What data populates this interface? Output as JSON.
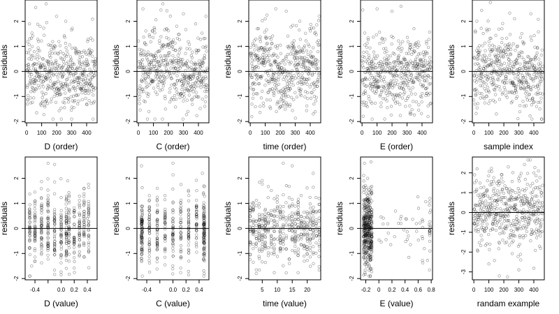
{
  "chart_data": [
    {
      "type": "scatter",
      "xlabel": "D (order)",
      "ylabel": "residuals",
      "xlim": [
        -10,
        470
      ],
      "ylim": [
        -2.05,
        2.85
      ],
      "xticks": [
        0,
        100,
        200,
        300,
        400
      ],
      "yticks": [
        -2,
        -1,
        0,
        1,
        2
      ],
      "hline": 0,
      "n_points": 470,
      "pattern": "index_mild",
      "points": [
        [
          5,
          -1.3
        ],
        [
          20,
          1.3
        ],
        [
          60,
          2.55
        ],
        [
          90,
          1.8
        ],
        [
          130,
          2.7
        ],
        [
          200,
          2.2
        ],
        [
          300,
          -1.9
        ],
        [
          400,
          -1.3
        ],
        [
          440,
          1.25
        ]
      ]
    },
    {
      "type": "scatter",
      "xlabel": "C (order)",
      "ylabel": "residuals",
      "xlim": [
        -10,
        470
      ],
      "ylim": [
        -2.05,
        2.85
      ],
      "xticks": [
        0,
        100,
        200,
        300,
        400
      ],
      "yticks": [
        -2,
        -1,
        0,
        1,
        2
      ],
      "hline": 0,
      "n_points": 470,
      "pattern": "index_trend",
      "points": [
        [
          30,
          2.5
        ],
        [
          70,
          -1.6
        ],
        [
          150,
          2.45
        ],
        [
          180,
          -1.5
        ],
        [
          300,
          2.3
        ],
        [
          330,
          -1.6
        ],
        [
          450,
          2.2
        ]
      ]
    },
    {
      "type": "scatter",
      "xlabel": "time (order)",
      "ylabel": "residuals",
      "xlim": [
        -10,
        470
      ],
      "ylim": [
        -2.05,
        2.85
      ],
      "xticks": [
        0,
        100,
        200,
        300,
        400
      ],
      "yticks": [
        -2,
        -1,
        0,
        1,
        2
      ],
      "hline": 0,
      "n_points": 470,
      "pattern": "index_wave",
      "points": [
        [
          10,
          -1.8
        ],
        [
          100,
          2.1
        ],
        [
          170,
          2.5
        ],
        [
          240,
          2.4
        ],
        [
          330,
          2.0
        ],
        [
          420,
          -1.7
        ],
        [
          460,
          2.2
        ]
      ]
    },
    {
      "type": "scatter",
      "xlabel": "E (order)",
      "ylabel": "residuals",
      "xlim": [
        -10,
        470
      ],
      "ylim": [
        -2.05,
        2.85
      ],
      "xticks": [
        0,
        100,
        200,
        300,
        400
      ],
      "yticks": [
        -2,
        -1,
        0,
        1,
        2
      ],
      "hline": 0,
      "n_points": 470,
      "pattern": "index_mild",
      "points": [
        [
          5,
          2.45
        ],
        [
          100,
          2.5
        ],
        [
          200,
          2.4
        ],
        [
          260,
          2.6
        ],
        [
          320,
          -1.7
        ],
        [
          440,
          -1.8
        ]
      ]
    },
    {
      "type": "scatter",
      "xlabel": "sample index",
      "ylabel": "residuals",
      "xlim": [
        -10,
        470
      ],
      "ylim": [
        -2.05,
        2.85
      ],
      "xticks": [
        0,
        100,
        200,
        300,
        400
      ],
      "yticks": [
        -2,
        -1,
        0,
        1,
        2
      ],
      "hline": 0,
      "n_points": 470,
      "pattern": "index_trend",
      "points": [
        [
          20,
          2.0
        ],
        [
          110,
          2.75
        ],
        [
          150,
          -1.7
        ],
        [
          380,
          2.3
        ],
        [
          440,
          -1.5
        ]
      ]
    },
    {
      "type": "scatter",
      "xlabel": "D (value)",
      "ylabel": "residuals",
      "xlim": [
        -0.55,
        0.55
      ],
      "ylim": [
        -2.05,
        2.85
      ],
      "xticks": [
        -0.4,
        -0.2,
        0.0,
        0.2,
        0.4
      ],
      "yticks": [
        -2,
        -1,
        0,
        1,
        2
      ],
      "xtick_labels": [
        "-0.4",
        "",
        "0.0",
        "0.2",
        "0.4"
      ],
      "hline": 0,
      "n_points": 470,
      "pattern": "value_columns",
      "columns": [
        -0.48,
        -0.4,
        -0.3,
        -0.2,
        -0.1,
        0.0,
        0.08,
        0.12,
        0.2,
        0.28,
        0.35,
        0.42
      ],
      "points": [
        [
          -0.45,
          -1.5
        ],
        [
          -0.2,
          2.6
        ],
        [
          -0.1,
          2.55
        ],
        [
          0.0,
          -1.85
        ],
        [
          0.1,
          1.9
        ],
        [
          0.4,
          0.4
        ]
      ]
    },
    {
      "type": "scatter",
      "xlabel": "C (value)",
      "ylabel": "residuals",
      "xlim": [
        -0.55,
        0.55
      ],
      "ylim": [
        -2.05,
        2.85
      ],
      "xticks": [
        -0.4,
        -0.2,
        0.0,
        0.2,
        0.4
      ],
      "yticks": [
        -2,
        -1,
        0,
        1,
        2
      ],
      "xtick_labels": [
        "-0.4",
        "",
        "0.0",
        "0.2",
        "0.4"
      ],
      "hline": 0,
      "n_points": 470,
      "pattern": "value_columns",
      "columns": [
        -0.48,
        -0.47,
        -0.36,
        -0.24,
        -0.12,
        0.0,
        0.12,
        0.24,
        0.36,
        0.47,
        0.48
      ],
      "points": [
        [
          -0.48,
          2.5
        ],
        [
          0.0,
          2.6
        ],
        [
          0.48,
          -1.8
        ],
        [
          0.45,
          2.2
        ]
      ]
    },
    {
      "type": "scatter",
      "xlabel": "time (value)",
      "ylabel": "residuals",
      "xlim": [
        0.5,
        24.5
      ],
      "ylim": [
        -2.05,
        2.85
      ],
      "xticks": [
        5,
        10,
        15,
        20
      ],
      "yticks": [
        -2,
        -1,
        0,
        1,
        2
      ],
      "hline": 0,
      "n_points": 470,
      "pattern": "value_columns",
      "columns": [
        1,
        2,
        3,
        4,
        5,
        6,
        7,
        8,
        9,
        10,
        11,
        12,
        13,
        14,
        15,
        16,
        17,
        18,
        19,
        20,
        21,
        22,
        23,
        24
      ],
      "points": [
        [
          3,
          -1.8
        ],
        [
          12,
          2.6
        ],
        [
          15,
          2.5
        ],
        [
          22,
          2.2
        ]
      ]
    },
    {
      "type": "scatter",
      "xlabel": "E (value)",
      "ylabel": "residuals",
      "xlim": [
        -0.28,
        0.82
      ],
      "ylim": [
        -2.05,
        2.85
      ],
      "xticks": [
        -0.2,
        0.0,
        0.2,
        0.4,
        0.6,
        0.8
      ],
      "yticks": [
        -2,
        -1,
        0,
        1,
        2
      ],
      "hline": 0,
      "n_points": 470,
      "pattern": "value_skewed",
      "columns": [
        -0.23,
        -0.21,
        -0.19,
        -0.17,
        -0.15,
        -0.13,
        -0.11
      ],
      "points": [
        [
          -0.22,
          2.6
        ],
        [
          -0.12,
          2.65
        ],
        [
          0.78,
          1.2
        ],
        [
          0.78,
          -0.9
        ],
        [
          0.45,
          -0.3
        ],
        [
          0.3,
          0.2
        ]
      ]
    },
    {
      "type": "scatter",
      "xlabel": "randam example",
      "ylabel": "residuals",
      "xlim": [
        -10,
        470
      ],
      "ylim": [
        -3.4,
        2.8
      ],
      "xticks": [
        0,
        100,
        200,
        300,
        400
      ],
      "yticks": [
        -3,
        -2,
        -1,
        0,
        1,
        2
      ],
      "hline": 0,
      "n_points": 470,
      "pattern": "random_normal",
      "points": [
        [
          5,
          1.9
        ],
        [
          100,
          -2.6
        ],
        [
          170,
          -3.2
        ],
        [
          230,
          2.3
        ],
        [
          300,
          -2.9
        ],
        [
          400,
          2.0
        ]
      ]
    }
  ],
  "colors": {
    "point": "#000000",
    "axis": "#000000",
    "background": "#ffffff"
  }
}
